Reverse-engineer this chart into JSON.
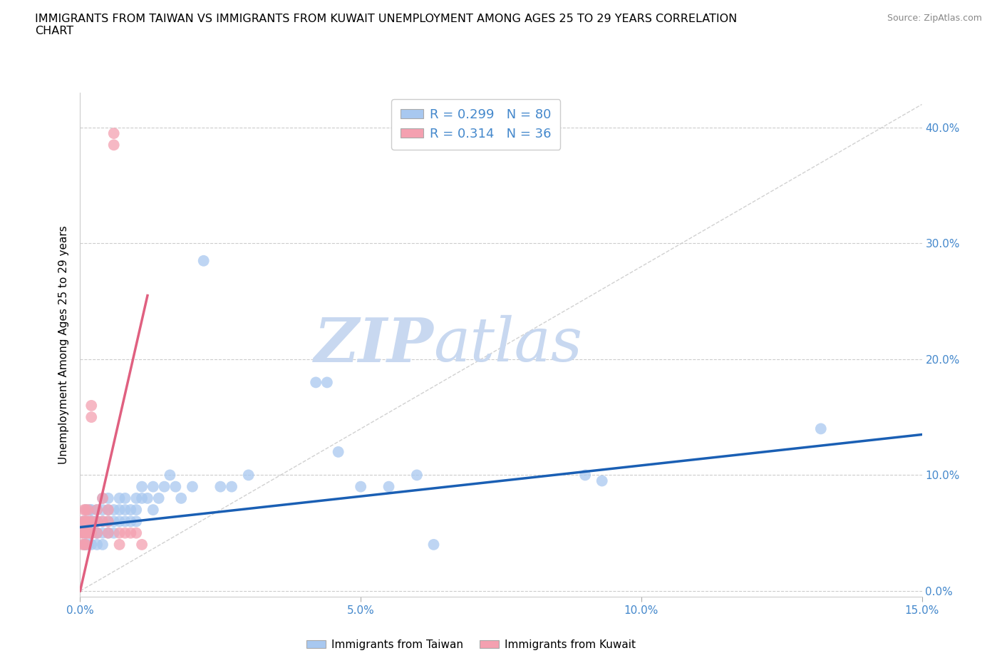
{
  "title": "IMMIGRANTS FROM TAIWAN VS IMMIGRANTS FROM KUWAIT UNEMPLOYMENT AMONG AGES 25 TO 29 YEARS CORRELATION\nCHART",
  "source": "Source: ZipAtlas.com",
  "ylabel": "Unemployment Among Ages 25 to 29 years",
  "xlim": [
    0.0,
    0.15
  ],
  "ylim": [
    0.0,
    0.42
  ],
  "xticks": [
    0.0,
    0.05,
    0.1,
    0.15
  ],
  "xticklabels": [
    "0.0%",
    "5.0%",
    "10.0%",
    "15.0%"
  ],
  "yticks": [
    0.0,
    0.1,
    0.2,
    0.3,
    0.4
  ],
  "yticklabels": [
    "0.0%",
    "10.0%",
    "20.0%",
    "30.0%",
    "40.0%"
  ],
  "taiwan_color": "#a8c8f0",
  "kuwait_color": "#f4a0b0",
  "taiwan_line_color": "#1a5fb4",
  "kuwait_line_color": "#e06080",
  "diag_line_color": "#cccccc",
  "taiwan_R": 0.299,
  "taiwan_N": 80,
  "kuwait_R": 0.314,
  "kuwait_N": 36,
  "watermark_zip": "ZIP",
  "watermark_atlas": "atlas",
  "watermark_color_zip": "#c8d8f0",
  "watermark_color_atlas": "#c8d8f0",
  "taiwan_line_x0": 0.0,
  "taiwan_line_y0": 0.055,
  "taiwan_line_x1": 0.15,
  "taiwan_line_y1": 0.135,
  "kuwait_line_x0": 0.0,
  "kuwait_line_y0": 0.0,
  "kuwait_line_x1": 0.012,
  "kuwait_line_y1": 0.255,
  "taiwan_scatter_x": [
    0.0005,
    0.0006,
    0.0007,
    0.0008,
    0.0009,
    0.001,
    0.001,
    0.001,
    0.001,
    0.001,
    0.0012,
    0.0013,
    0.0014,
    0.0015,
    0.0016,
    0.0017,
    0.0018,
    0.002,
    0.002,
    0.002,
    0.002,
    0.002,
    0.002,
    0.002,
    0.002,
    0.0025,
    0.003,
    0.003,
    0.003,
    0.003,
    0.003,
    0.003,
    0.004,
    0.004,
    0.004,
    0.004,
    0.004,
    0.005,
    0.005,
    0.005,
    0.005,
    0.006,
    0.006,
    0.006,
    0.007,
    0.007,
    0.007,
    0.008,
    0.008,
    0.008,
    0.009,
    0.009,
    0.01,
    0.01,
    0.01,
    0.011,
    0.011,
    0.012,
    0.013,
    0.013,
    0.014,
    0.015,
    0.016,
    0.017,
    0.018,
    0.02,
    0.022,
    0.025,
    0.027,
    0.03,
    0.042,
    0.044,
    0.046,
    0.05,
    0.055,
    0.06,
    0.063,
    0.09,
    0.093,
    0.132
  ],
  "taiwan_scatter_y": [
    0.06,
    0.05,
    0.04,
    0.06,
    0.05,
    0.06,
    0.07,
    0.05,
    0.04,
    0.05,
    0.05,
    0.06,
    0.04,
    0.06,
    0.05,
    0.07,
    0.05,
    0.06,
    0.05,
    0.04,
    0.06,
    0.05,
    0.07,
    0.06,
    0.05,
    0.06,
    0.07,
    0.06,
    0.05,
    0.04,
    0.06,
    0.05,
    0.06,
    0.07,
    0.08,
    0.05,
    0.04,
    0.07,
    0.06,
    0.05,
    0.08,
    0.07,
    0.06,
    0.05,
    0.07,
    0.06,
    0.08,
    0.07,
    0.06,
    0.08,
    0.07,
    0.06,
    0.08,
    0.07,
    0.06,
    0.09,
    0.08,
    0.08,
    0.09,
    0.07,
    0.08,
    0.09,
    0.1,
    0.09,
    0.08,
    0.09,
    0.285,
    0.09,
    0.09,
    0.1,
    0.18,
    0.18,
    0.12,
    0.09,
    0.09,
    0.1,
    0.04,
    0.1,
    0.095,
    0.14
  ],
  "kuwait_scatter_x": [
    0.0003,
    0.0004,
    0.0005,
    0.0006,
    0.0007,
    0.0008,
    0.0009,
    0.001,
    0.001,
    0.001,
    0.001,
    0.001,
    0.0012,
    0.0014,
    0.0015,
    0.0016,
    0.002,
    0.002,
    0.002,
    0.002,
    0.003,
    0.003,
    0.003,
    0.004,
    0.004,
    0.005,
    0.005,
    0.005,
    0.006,
    0.006,
    0.007,
    0.007,
    0.008,
    0.009,
    0.01,
    0.011
  ],
  "kuwait_scatter_y": [
    0.05,
    0.04,
    0.06,
    0.05,
    0.07,
    0.04,
    0.06,
    0.07,
    0.06,
    0.05,
    0.04,
    0.06,
    0.05,
    0.07,
    0.06,
    0.05,
    0.16,
    0.15,
    0.06,
    0.05,
    0.07,
    0.06,
    0.05,
    0.08,
    0.06,
    0.06,
    0.05,
    0.07,
    0.385,
    0.395,
    0.05,
    0.04,
    0.05,
    0.05,
    0.05,
    0.04
  ]
}
